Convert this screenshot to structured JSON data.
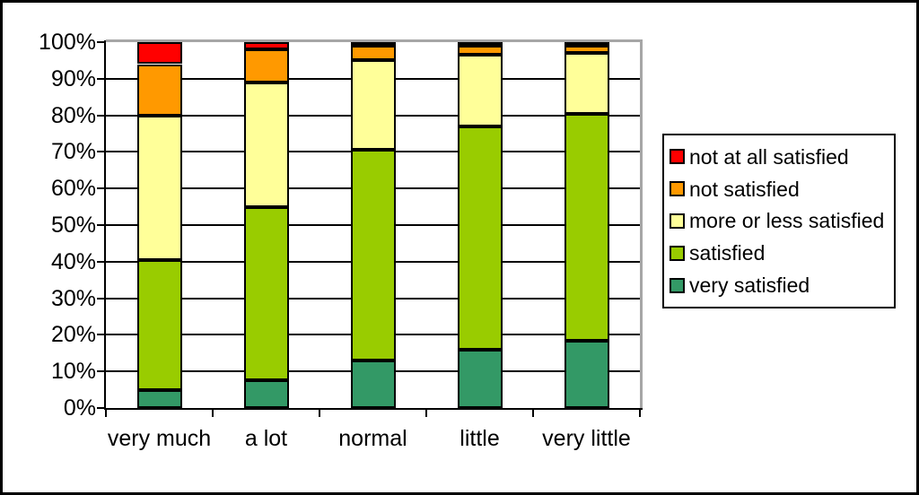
{
  "chart_data": {
    "type": "bar",
    "stacked": true,
    "percent_stacked": true,
    "title": "",
    "xlabel": "",
    "ylabel": "",
    "categories": [
      "very much",
      "a lot",
      "normal",
      "little",
      "very little"
    ],
    "series": [
      {
        "name": "very satisfied",
        "color": "#339966",
        "values": [
          5,
          7.5,
          13,
          16,
          18.5
        ]
      },
      {
        "name": "satisfied",
        "color": "#99CC00",
        "values": [
          35.5,
          47.5,
          57.5,
          61,
          62
        ]
      },
      {
        "name": "more or less satisfied",
        "color": "#FFFF99",
        "values": [
          39.5,
          34,
          24.5,
          19.5,
          16.5
        ]
      },
      {
        "name": "not satisfied",
        "color": "#FF9900",
        "values": [
          14,
          9,
          4,
          2.5,
          2
        ]
      },
      {
        "name": "not at all satisfied",
        "color": "#FF0000",
        "values": [
          6,
          2,
          1,
          1,
          1
        ]
      }
    ],
    "ylim": [
      0,
      100
    ],
    "yticks": [
      "0%",
      "10%",
      "20%",
      "30%",
      "40%",
      "50%",
      "60%",
      "70%",
      "80%",
      "90%",
      "100%"
    ],
    "grid": true,
    "legend_position": "right",
    "legend_order_top_to_bottom": [
      "not at all satisfied",
      "not satisfied",
      "more or less satisfied",
      "satisfied",
      "very satisfied"
    ]
  },
  "colors": {
    "background": "#FFFFFF",
    "outer_border": "#000000",
    "gridline": "#000000",
    "axis": "#000000",
    "plot_border_shadow": "#A6A6A6",
    "legend_border": "#000000"
  }
}
